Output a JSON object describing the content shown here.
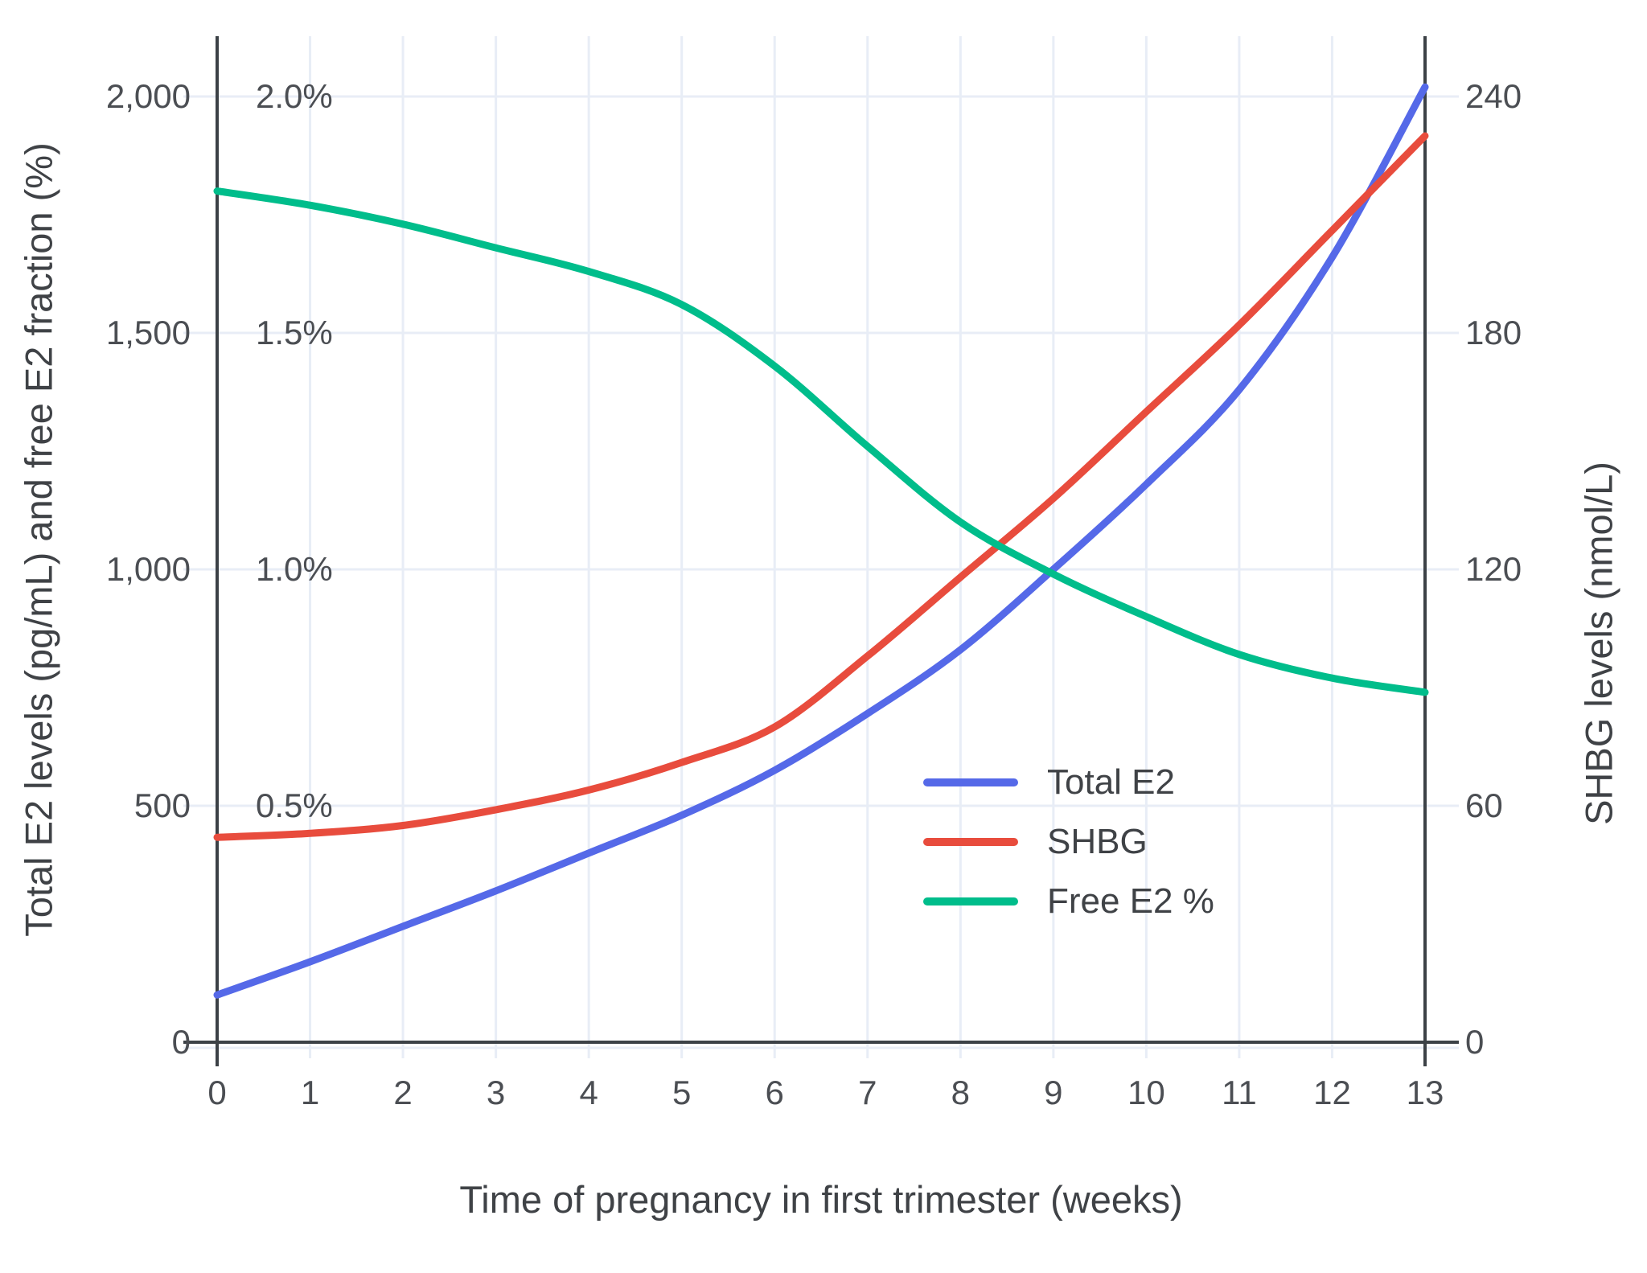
{
  "chart_data": {
    "type": "line",
    "x": [
      0,
      1,
      2,
      3,
      4,
      5,
      6,
      7,
      8,
      9,
      10,
      11,
      12,
      13
    ],
    "xlabel": "Time of pregnancy in first trimester (weeks)",
    "ylabel_left": "Total E2 levels (pg/mL) and free E2 fraction (%)",
    "ylabel_right": "SHBG levels (nmol/L)",
    "grid": true,
    "series": [
      {
        "name": "Total E2",
        "unit": "pg/mL",
        "axis": "left",
        "color": "#5569e8",
        "values": [
          100,
          170,
          245,
          320,
          400,
          480,
          575,
          695,
          830,
          1000,
          1180,
          1380,
          1660,
          2020
        ]
      },
      {
        "name": "SHBG",
        "unit": "nmol/L",
        "axis": "right",
        "color": "#e84c3d",
        "values": [
          52,
          53,
          55,
          59,
          64,
          71,
          80,
          98,
          118,
          138,
          160,
          182,
          206,
          230
        ]
      },
      {
        "name": "Free E2 %",
        "unit": "%",
        "axis": "left-percent",
        "color": "#00bd8b",
        "values": [
          1.8,
          1.77,
          1.73,
          1.68,
          1.63,
          1.56,
          1.43,
          1.26,
          1.1,
          0.99,
          0.9,
          0.82,
          0.77,
          0.74
        ]
      }
    ],
    "left_axis": {
      "tick_labels": [
        "0",
        "500",
        "1,000",
        "1,500",
        "2,000"
      ],
      "tick_values": [
        0,
        500,
        1000,
        1500,
        2000
      ],
      "range": [
        0,
        2125
      ]
    },
    "left_axis_percent_ticks": {
      "tick_labels": [
        "0.5%",
        "1.0%",
        "1.5%",
        "2.0%"
      ],
      "tick_values": [
        500,
        1000,
        1500,
        2000
      ]
    },
    "right_axis": {
      "tick_labels": [
        "0",
        "60",
        "120",
        "180",
        "240"
      ],
      "tick_values": [
        0,
        60,
        120,
        180,
        240
      ],
      "range": [
        0,
        255
      ]
    },
    "x_axis": {
      "tick_labels": [
        "0",
        "1",
        "2",
        "3",
        "4",
        "5",
        "6",
        "7",
        "8",
        "9",
        "10",
        "11",
        "12",
        "13"
      ],
      "tick_values": [
        0,
        1,
        2,
        3,
        4,
        5,
        6,
        7,
        8,
        9,
        10,
        11,
        12,
        13
      ]
    },
    "legend": {
      "position": "inside-right-middle",
      "items": [
        "Total E2",
        "SHBG",
        "Free E2 %"
      ]
    }
  },
  "colors": {
    "total_e2_line": "#5569e8",
    "shbg_line": "#e84c3d",
    "free_e2_line": "#00bd8b",
    "gridline": "#e8edf6",
    "axis_line": "#3c4146",
    "tick_text": "#4b4e53",
    "title_text": "#3f4246",
    "background": "#ffffff"
  }
}
